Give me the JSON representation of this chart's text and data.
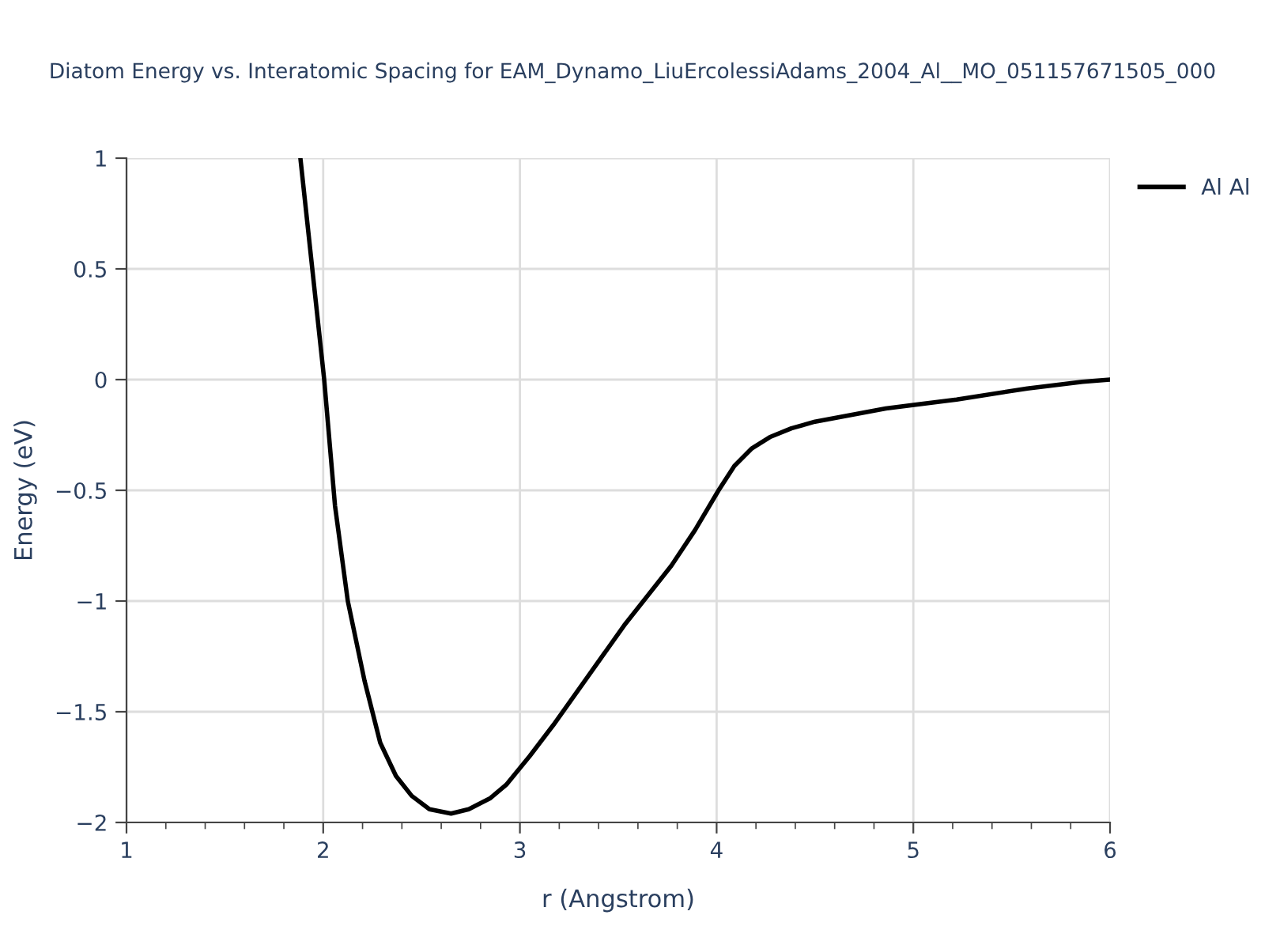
{
  "chart_data": {
    "type": "line",
    "title": "Diatom Energy vs. Interatomic Spacing for EAM_Dynamo_LiuErcolessiAdams_2004_Al__MO_051157671505_000",
    "xlabel": "r (Angstrom)",
    "ylabel": "Energy (eV)",
    "series": [
      {
        "name": "Al Al",
        "color": "#000000",
        "x": [
          1.884,
          2.005,
          2.06,
          2.125,
          2.21,
          2.29,
          2.37,
          2.45,
          2.54,
          2.65,
          2.74,
          2.85,
          2.93,
          3.05,
          3.17,
          3.33,
          3.53,
          3.77,
          3.89,
          4.01,
          4.09,
          4.18,
          4.27,
          4.38,
          4.5,
          4.86,
          5.22,
          5.58,
          5.86,
          6.0
        ],
        "values": [
          1.0,
          0.0,
          -0.57,
          -1.0,
          -1.36,
          -1.64,
          -1.79,
          -1.88,
          -1.94,
          -1.96,
          -1.94,
          -1.89,
          -1.83,
          -1.7,
          -1.56,
          -1.36,
          -1.11,
          -0.84,
          -0.68,
          -0.5,
          -0.39,
          -0.31,
          -0.26,
          -0.22,
          -0.19,
          -0.13,
          -0.09,
          -0.04,
          -0.01,
          0.0
        ]
      }
    ],
    "xlim": [
      1,
      6
    ],
    "xticks": [
      1,
      2,
      3,
      4,
      5,
      6
    ],
    "ylim": [
      -2,
      1
    ],
    "yticks": [
      1,
      0.5,
      0,
      {
        "value": -0.5,
        "label": "−0.5"
      },
      {
        "value": -1,
        "label": "−1"
      },
      {
        "value": -1.5,
        "label": "−1.5"
      },
      {
        "value": -2,
        "label": "−2"
      }
    ],
    "grid": true,
    "legend": "top right",
    "marker": "none",
    "line_style": "solid"
  }
}
